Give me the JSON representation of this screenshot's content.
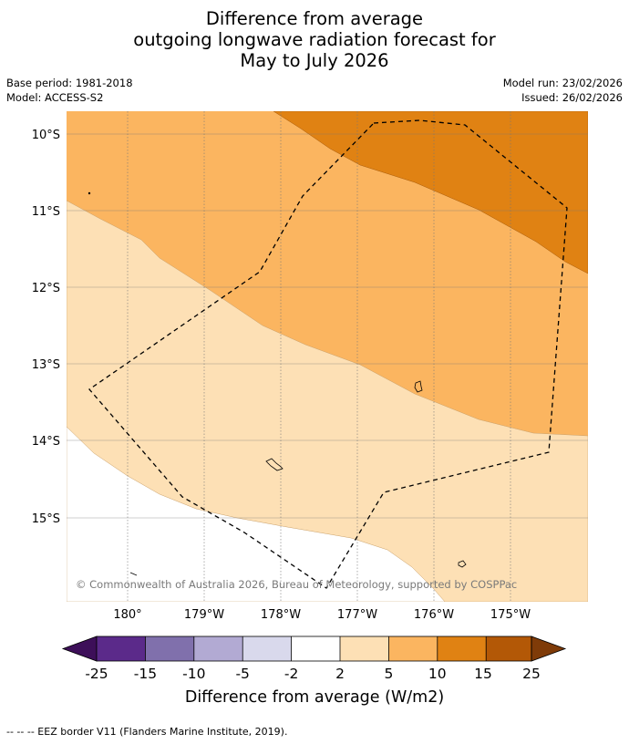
{
  "title": {
    "line1": "Difference from average",
    "line2": "outgoing longwave radiation forecast for",
    "line3": "May to July 2026"
  },
  "meta": {
    "base_period": "Base period: 1981-2018",
    "model": "Model: ACCESS-S2",
    "model_run": "Model run: 23/02/2026",
    "issued": "Issued: 26/02/2026"
  },
  "map": {
    "lat_labels": [
      "10°S",
      "11°S",
      "12°S",
      "13°S",
      "14°S",
      "15°S"
    ],
    "lon_labels": [
      "180°",
      "179°W",
      "178°W",
      "177°W",
      "176°W",
      "175°W"
    ],
    "copyright": "© Commonwealth of Australia 2026, Bureau of Meteorology, supported by COSPPac",
    "colors": {
      "band_2_5": "#fde0b5",
      "band_5_10": "#fbb560",
      "band_10_15": "#e08213",
      "below_2": "#ffffff"
    }
  },
  "colorbar": {
    "tick_labels": [
      "-25",
      "-15",
      "-10",
      "-5",
      "-2",
      "2",
      "5",
      "10",
      "15",
      "25"
    ],
    "label": "Difference from average (W/m2)",
    "colors": [
      "#3d0f59",
      "#5b2a8a",
      "#8070ac",
      "#b2aad3",
      "#d9d9ec",
      "#ffffff",
      "#fde0b5",
      "#fbb560",
      "#e08213",
      "#b35806",
      "#7f3b08"
    ]
  },
  "footer": {
    "legend": "--  --  -- EEZ border V11 (Flanders Marine Institute, 2019)."
  }
}
